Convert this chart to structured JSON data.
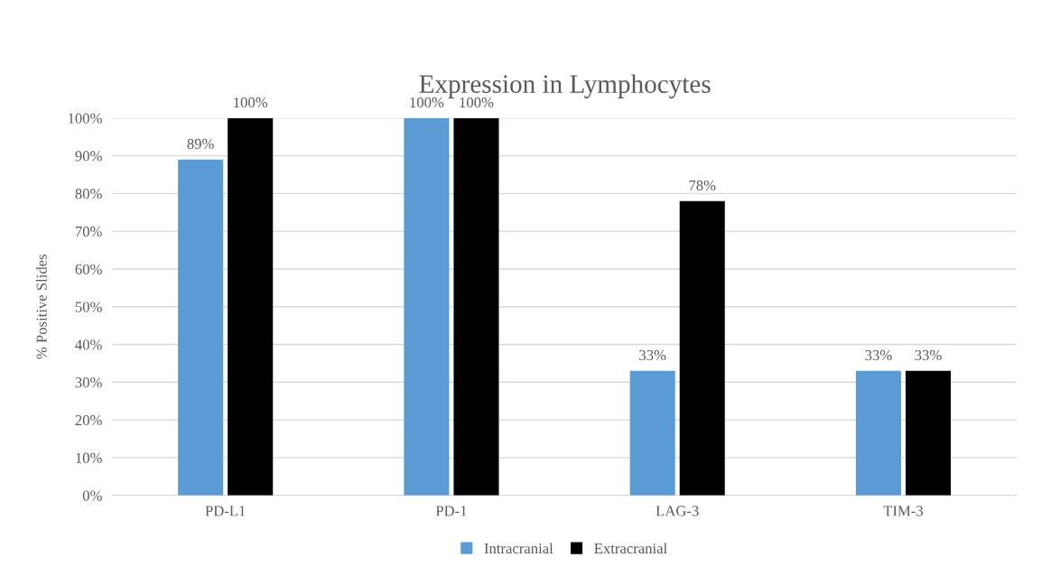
{
  "chart_data": {
    "type": "bar",
    "title": "Expression in Lymphocytes",
    "ylabel": "% Positive Slides",
    "categories": [
      "PD-L1",
      "PD-1",
      "LAG-3",
      "TIM-3"
    ],
    "series": [
      {
        "name": "Intracranial",
        "color": "#5b9bd5",
        "values": [
          89,
          100,
          33,
          33
        ],
        "value_labels": [
          "89%",
          "100%",
          "33%",
          "33%"
        ]
      },
      {
        "name": "Extracranial",
        "color": "#000000",
        "values": [
          100,
          100,
          78,
          33
        ],
        "value_labels": [
          "100%",
          "100%",
          "78%",
          "33%"
        ]
      }
    ],
    "ylim": [
      0,
      100
    ],
    "yticks": [
      {
        "value": 0,
        "label": "0%"
      },
      {
        "value": 10,
        "label": "10%"
      },
      {
        "value": 20,
        "label": "20%"
      },
      {
        "value": 30,
        "label": "30%"
      },
      {
        "value": 40,
        "label": "40%"
      },
      {
        "value": 50,
        "label": "50%"
      },
      {
        "value": 60,
        "label": "60%"
      },
      {
        "value": 70,
        "label": "70%"
      },
      {
        "value": 80,
        "label": "80%"
      },
      {
        "value": 90,
        "label": "90%"
      },
      {
        "value": 100,
        "label": "100%"
      }
    ],
    "grid": "y",
    "legend": "bottom"
  }
}
